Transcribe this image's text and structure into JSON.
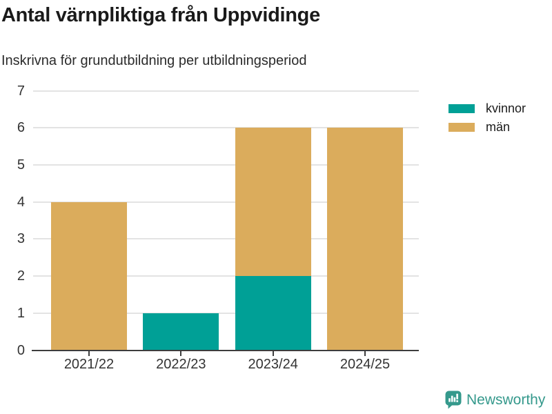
{
  "title": "Antal värnpliktiga från Uppvidinge",
  "subtitle": "Inskrivna för grundutbildning per utbildningsperiod",
  "colors": {
    "kvinnor": "#00a096",
    "man": "#dbac5c",
    "axis": "#3d3d3d",
    "grid": "#e3e3e3",
    "title_text": "#1a1a1a",
    "tick_text": "#333333",
    "brand_teal": "#35998c"
  },
  "chart_data": {
    "type": "bar",
    "stacked": true,
    "title": "Antal värnpliktiga från Uppvidinge",
    "subtitle": "Inskrivna för grundutbildning per utbildningsperiod",
    "categories": [
      "2021/22",
      "2022/23",
      "2023/24",
      "2024/25"
    ],
    "series": [
      {
        "name": "kvinnor",
        "color": "#00a096",
        "values": [
          0,
          1,
          2,
          0
        ]
      },
      {
        "name": "män",
        "color": "#dbac5c",
        "values": [
          4,
          0,
          4,
          6
        ]
      }
    ],
    "totals": [
      4,
      1,
      6,
      6
    ],
    "xlabel": "",
    "ylabel": "",
    "ylim": [
      0,
      7
    ],
    "yticks": [
      0,
      1,
      2,
      3,
      4,
      5,
      6,
      7
    ],
    "grid": "horizontal",
    "legend_position": "right"
  },
  "footer": {
    "brand": "Newsworthy",
    "brand_icon": "newsworthy-bar-chart-bubble-icon"
  }
}
